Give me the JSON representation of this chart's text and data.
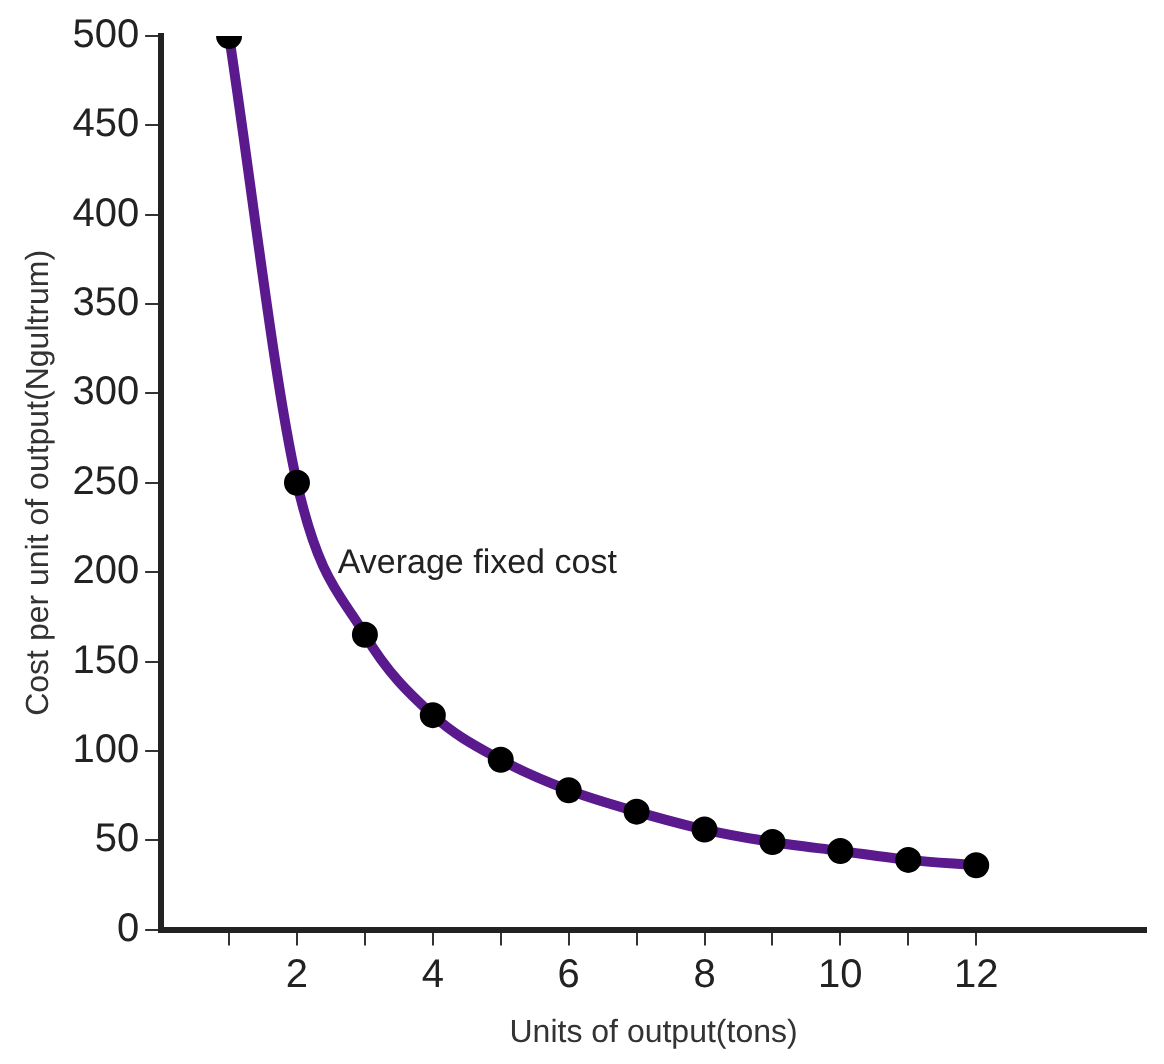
{
  "chart_data": {
    "type": "line",
    "xlabel": "Units of output(tons)",
    "ylabel": "Cost per unit of output(Ngultrum)",
    "annotations": [
      {
        "text": "Average fixed cost",
        "x": 2.6,
        "y": 205
      }
    ],
    "series": [
      {
        "color": "#5a1a8e",
        "x": [
          1,
          2,
          3,
          4,
          5,
          6,
          7,
          8,
          9,
          10,
          11,
          12
        ],
        "values": [
          500,
          250,
          165,
          120,
          95,
          78,
          66,
          56,
          49,
          44,
          39,
          36
        ]
      }
    ],
    "xlim": [
      0,
      14.5
    ],
    "xticks": [
      {
        "value": 1,
        "label": null
      },
      2,
      {
        "value": 3,
        "label": null
      },
      4,
      {
        "value": 5,
        "label": null
      },
      6,
      {
        "value": 7,
        "label": null
      },
      8,
      {
        "value": 9,
        "label": null
      },
      10,
      {
        "value": 11,
        "label": null
      },
      12
    ],
    "ylim": [
      0,
      500
    ],
    "yticks": [
      0,
      50,
      100,
      150,
      200,
      250,
      300,
      350,
      400,
      450,
      500
    ],
    "grid": false,
    "legend": false,
    "marker": "circle",
    "line_style": "solid"
  }
}
